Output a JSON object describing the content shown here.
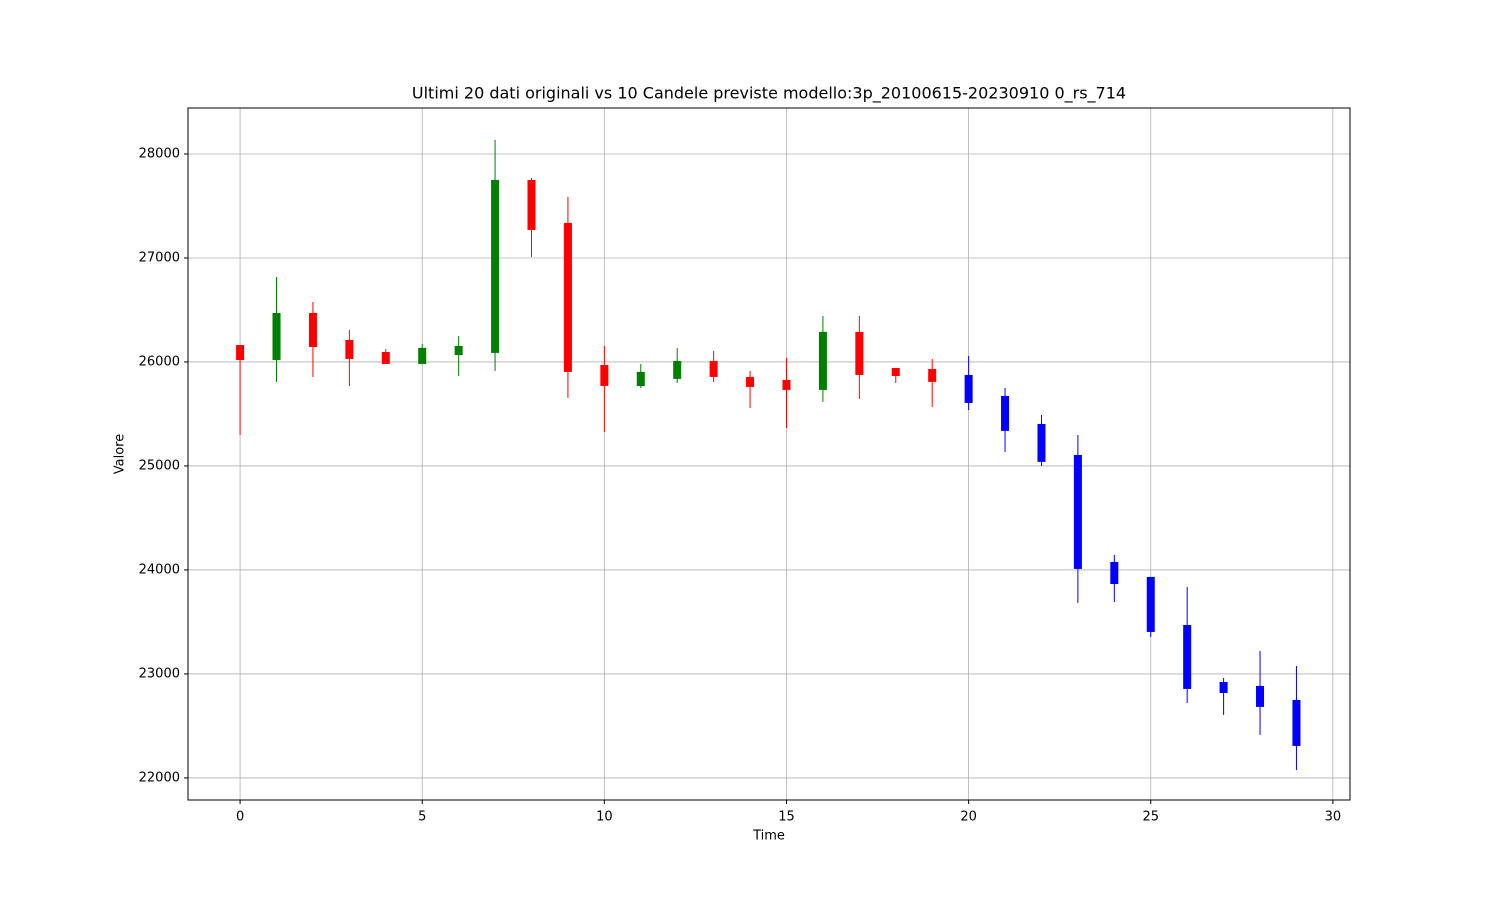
{
  "chart_data": {
    "type": "candlestick",
    "title": "Ultimi 20 dati originali vs 10 Candele previste modello:3p_20100615-20230910 0_rs_714",
    "x_label": "Time",
    "y_label": "Valore",
    "x": [
      0,
      1,
      2,
      3,
      4,
      5,
      6,
      7,
      8,
      9,
      10,
      11,
      12,
      13,
      14,
      15,
      16,
      17,
      18,
      19,
      20,
      21,
      22,
      23,
      24,
      25,
      26,
      27,
      28,
      29
    ],
    "open": [
      26163,
      26019,
      26471,
      26212,
      26096,
      25981,
      26067,
      26087,
      27750,
      27337,
      25971,
      25769,
      25837,
      26010,
      25856,
      25827,
      25731,
      26289,
      25942,
      25933,
      25875,
      25673,
      25404,
      25106,
      24077,
      23933,
      23471,
      22923,
      22885,
      22750
    ],
    "high": [
      26163,
      26817,
      26577,
      26308,
      26125,
      26173,
      26250,
      28135,
      27769,
      27587,
      26154,
      25981,
      26135,
      26106,
      25913,
      26038,
      26442,
      26442,
      25942,
      26029,
      26058,
      25750,
      25490,
      25298,
      24144,
      23933,
      23837,
      22962,
      23221,
      23077
    ],
    "low": [
      25298,
      25808,
      25856,
      25769,
      25981,
      25981,
      25865,
      25913,
      27010,
      25654,
      25327,
      25750,
      25798,
      25808,
      25558,
      25365,
      25616,
      25644,
      25798,
      25567,
      25538,
      25135,
      25000,
      23683,
      23692,
      23356,
      22721,
      22606,
      22414,
      22077
    ],
    "close": [
      26019,
      26471,
      26144,
      26029,
      25981,
      26135,
      26154,
      27750,
      27269,
      25904,
      25769,
      25904,
      26010,
      25856,
      25760,
      25731,
      26289,
      25875,
      25865,
      25808,
      25606,
      25337,
      25039,
      24010,
      23865,
      23404,
      22856,
      22817,
      22683,
      22308
    ],
    "colors": [
      "#ff0000",
      "#008000",
      "#ff0000",
      "#ff0000",
      "#ff0000",
      "#008000",
      "#008000",
      "#008000",
      "#ff0000",
      "#ff0000",
      "#ff0000",
      "#008000",
      "#008000",
      "#ff0000",
      "#ff0000",
      "#ff0000",
      "#008000",
      "#ff0000",
      "#ff0000",
      "#ff0000",
      "#0000ff",
      "#0000ff",
      "#0000ff",
      "#0000ff",
      "#0000ff",
      "#0000ff",
      "#0000ff",
      "#0000ff",
      "#0000ff",
      "#0000ff"
    ],
    "xlim": [
      -1.43,
      30.47
    ],
    "ylim": [
      21788,
      28442
    ],
    "xticks": [
      0,
      5,
      10,
      15,
      20,
      25,
      30
    ],
    "yticks": [
      22000,
      23000,
      24000,
      25000,
      26000,
      27000,
      28000
    ],
    "grid": true
  }
}
